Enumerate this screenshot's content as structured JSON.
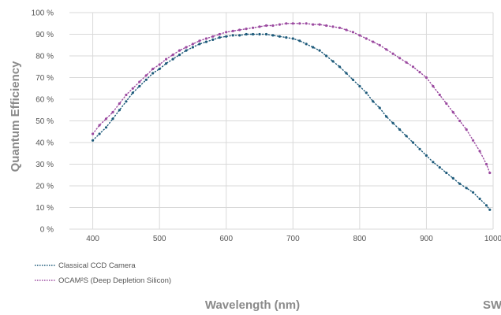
{
  "chart_data": {
    "type": "scatter",
    "xlabel": "Wavelength (nm)",
    "ylabel": "Quantum Efficiency",
    "corner_text": "SW",
    "xlim": [
      365,
      1000
    ],
    "ylim": [
      0,
      100
    ],
    "x_ticks": [
      "400",
      "500",
      "600",
      "700",
      "800",
      "900",
      "1000"
    ],
    "y_ticks": [
      "0 %",
      "10 %",
      "20 %",
      "30 %",
      "40 %",
      "50 %",
      "60 %",
      "70 %",
      "80 %",
      "90 %",
      "100 %"
    ],
    "grid": true,
    "legend_position": "bottom-left",
    "series": [
      {
        "name": "Classical CCD Camera",
        "color": "#1d5a7a",
        "x": [
          400,
          410,
          420,
          430,
          440,
          450,
          460,
          470,
          480,
          490,
          500,
          510,
          520,
          530,
          540,
          550,
          560,
          570,
          580,
          590,
          600,
          610,
          620,
          630,
          640,
          650,
          660,
          670,
          680,
          690,
          700,
          710,
          720,
          730,
          740,
          750,
          760,
          770,
          780,
          790,
          800,
          810,
          820,
          830,
          840,
          850,
          860,
          870,
          880,
          890,
          900,
          910,
          920,
          930,
          940,
          950,
          960,
          970,
          980,
          990,
          995
        ],
        "y": [
          41,
          44,
          47,
          51,
          55,
          59,
          63,
          66,
          69,
          72,
          74,
          76.5,
          78.5,
          80.5,
          82.5,
          84,
          85.5,
          86.5,
          87.5,
          88.5,
          89,
          89.5,
          89.5,
          90,
          90,
          90,
          90,
          89.5,
          89,
          88.5,
          88,
          87,
          85.5,
          84,
          82.5,
          80,
          77.5,
          75,
          72,
          69,
          66,
          63,
          59,
          56,
          52,
          49,
          46,
          43,
          40,
          37,
          34,
          31,
          28.5,
          26,
          23.5,
          21,
          19,
          17,
          14,
          11,
          9
        ]
      },
      {
        "name": "OCAM²S (Deep Depletion Silicon)",
        "color": "#9b4aa0",
        "x": [
          400,
          410,
          420,
          430,
          440,
          450,
          460,
          470,
          480,
          490,
          500,
          510,
          520,
          530,
          540,
          550,
          560,
          570,
          580,
          590,
          600,
          610,
          620,
          630,
          640,
          650,
          660,
          670,
          680,
          690,
          700,
          710,
          720,
          730,
          740,
          750,
          760,
          770,
          780,
          790,
          800,
          810,
          820,
          830,
          840,
          850,
          860,
          870,
          880,
          890,
          900,
          910,
          920,
          930,
          940,
          950,
          960,
          970,
          980,
          990,
          995
        ],
        "y": [
          44,
          48,
          51,
          54,
          58,
          62,
          65,
          68,
          71,
          74,
          76,
          78.5,
          80.5,
          82.5,
          84,
          85.5,
          87,
          88,
          89,
          90,
          91,
          91.5,
          92,
          92.5,
          93,
          93.5,
          94,
          94,
          94.5,
          95,
          95,
          95,
          95,
          94.5,
          94.5,
          94,
          93.5,
          93,
          92,
          91,
          89.5,
          88,
          86.5,
          85,
          83,
          81,
          79,
          77,
          75,
          72.5,
          70,
          66,
          62,
          58,
          54,
          50,
          46,
          41,
          36,
          30,
          26
        ]
      }
    ]
  }
}
